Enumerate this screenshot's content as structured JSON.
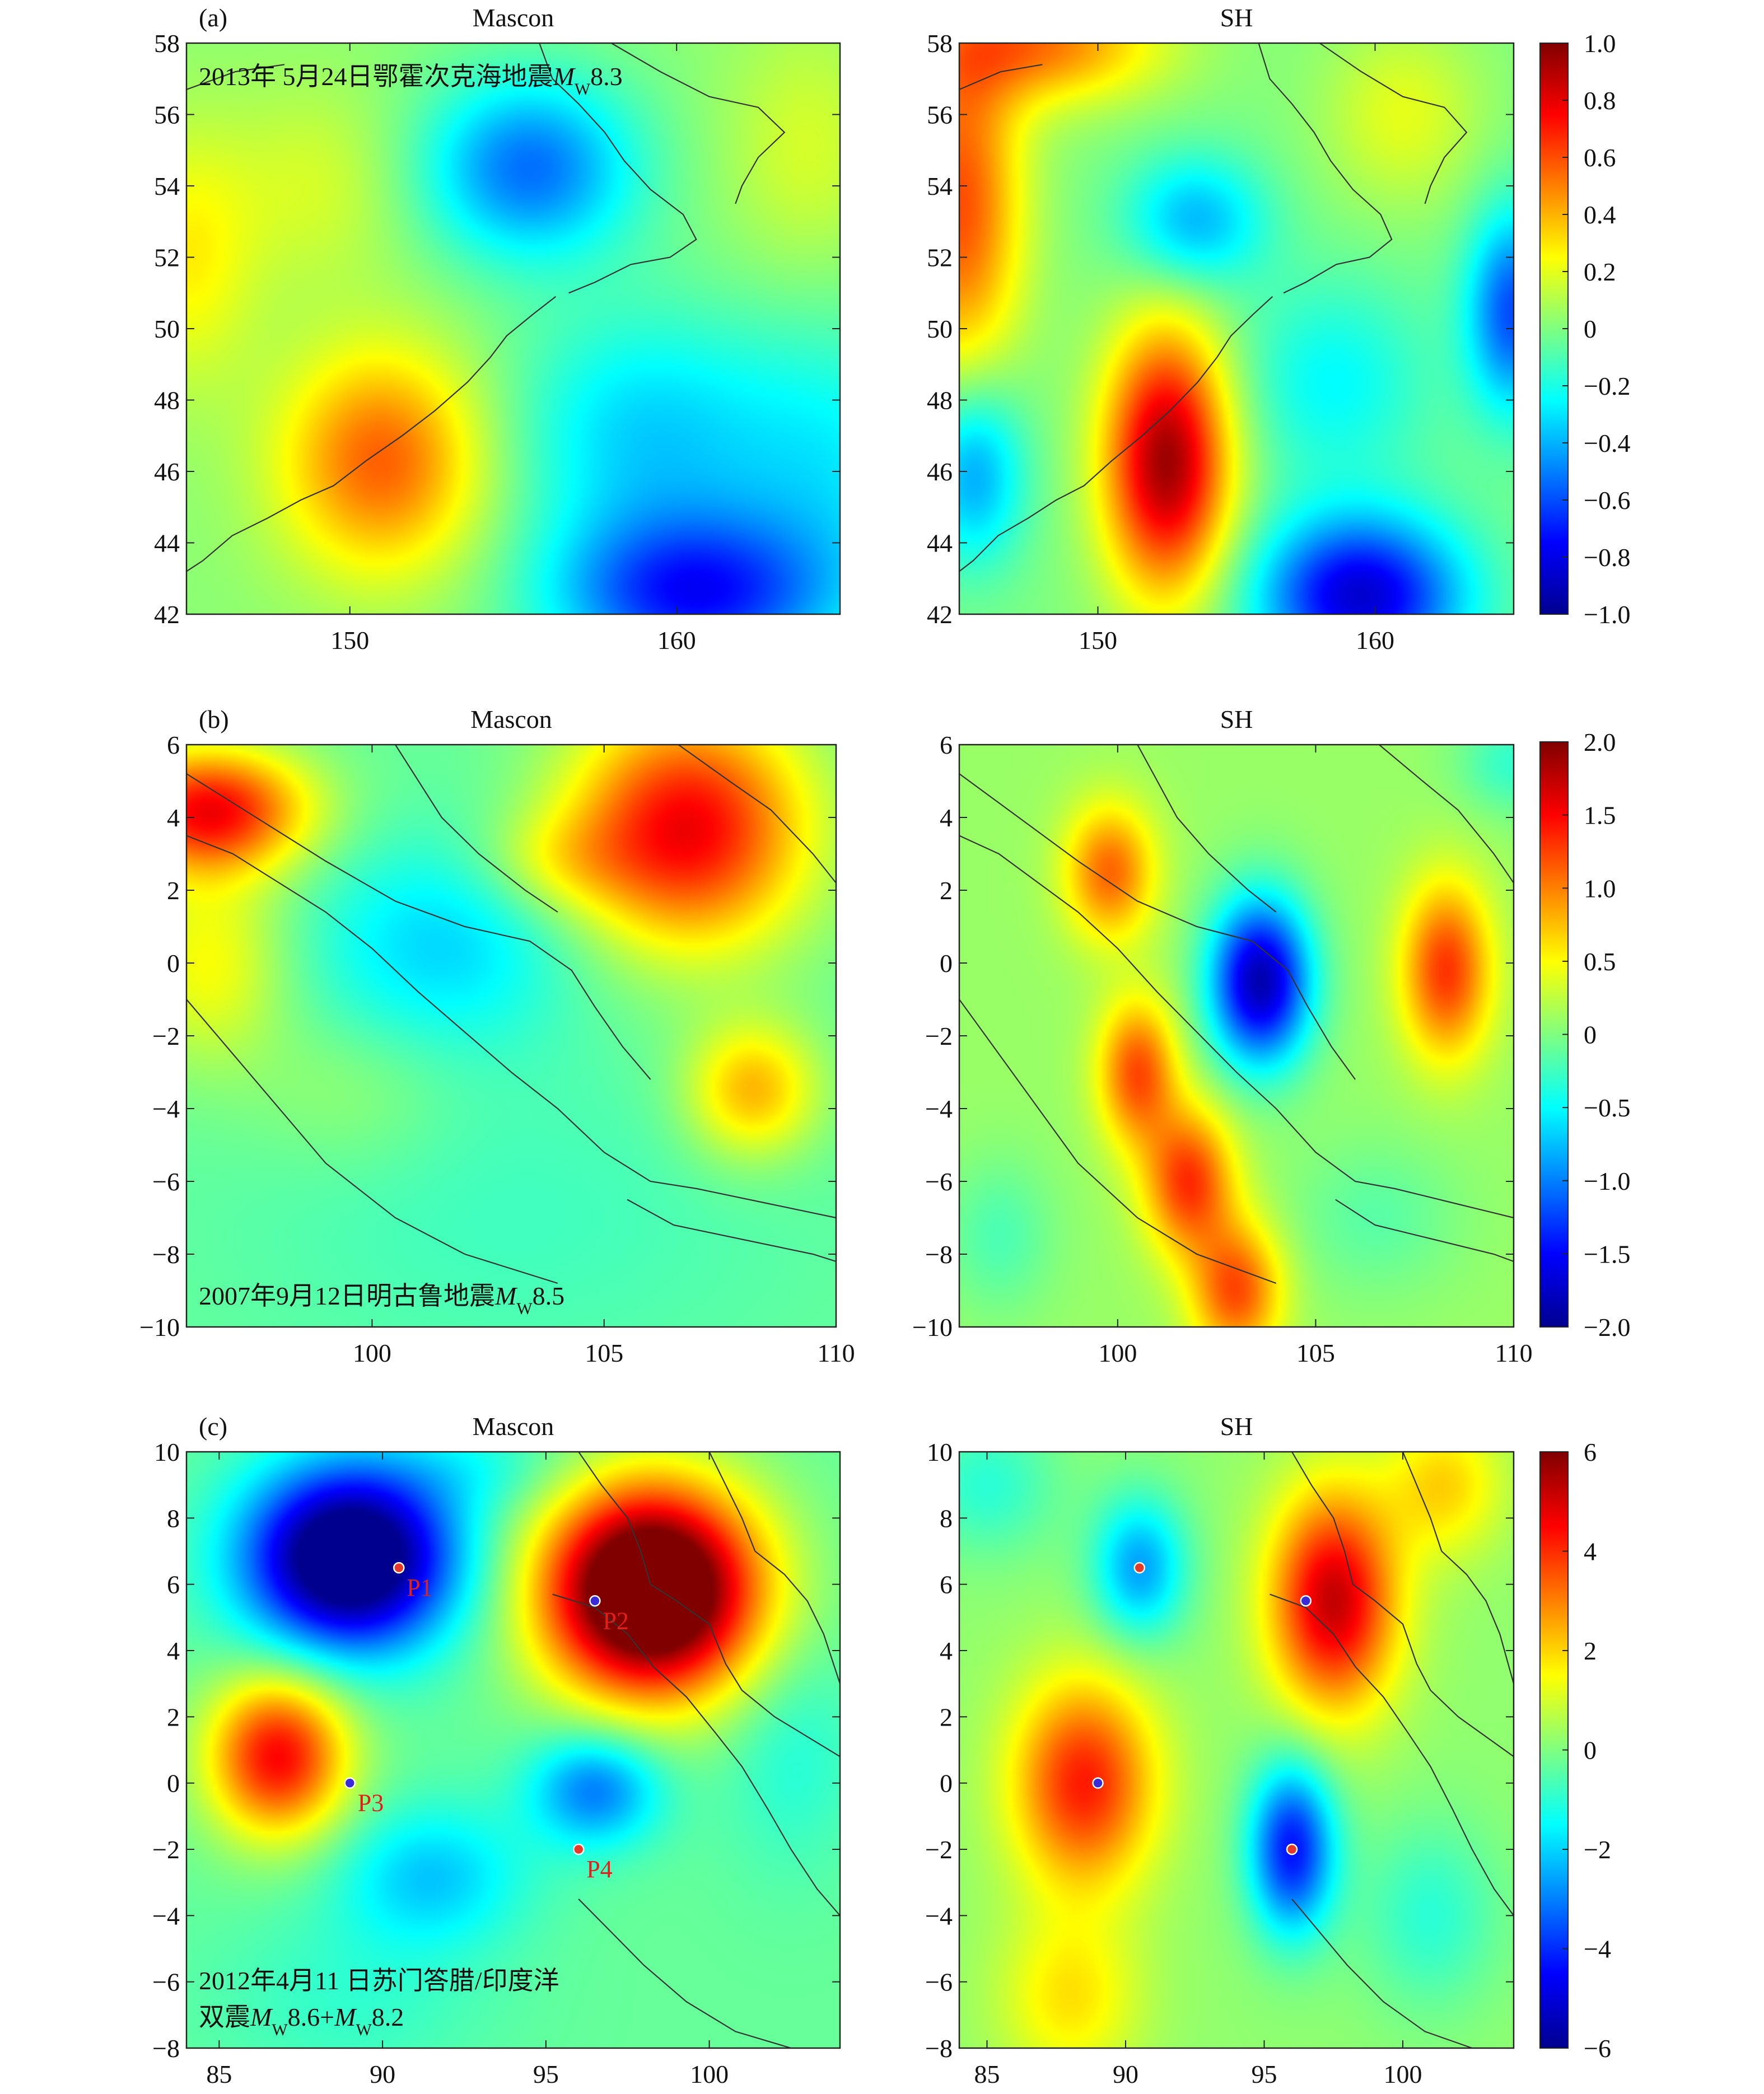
{
  "colors": {
    "coast": "#333333",
    "frame": "#222222",
    "marker_red": "#e53a2a",
    "marker_blue": "#3a2bd8",
    "label_red": "#e0201a"
  },
  "colormap": [
    "#00008f",
    "#0000ff",
    "#0080ff",
    "#00ffff",
    "#80ff80",
    "#ffff00",
    "#ff8000",
    "#ff0000",
    "#800000"
  ],
  "chart_data": [
    {
      "type": "heatmap",
      "tag": "(a)",
      "title": "Mascon",
      "event": {
        "lines": [
          [
            {
              "t": "2013年 5月24日鄂霍次克海地震"
            },
            {
              "t": "M",
              "i": true
            },
            {
              "t": "W",
              "sub": true
            },
            {
              "t": "8.3"
            }
          ]
        ]
      },
      "xlim": [
        145,
        165
      ],
      "ylim": [
        42,
        58
      ],
      "xticks": [
        "150",
        "160"
      ],
      "xtick_values": [
        150,
        160
      ],
      "yticks": [
        "42",
        "44",
        "46",
        "48",
        "50",
        "52",
        "54",
        "56",
        "58"
      ],
      "clim": [
        -1,
        1
      ],
      "blobs": [
        {
          "x": 155.5,
          "y": 54.5,
          "a": -0.55,
          "sx": 2.3,
          "sy": 1.8
        },
        {
          "x": 151,
          "y": 46.3,
          "a": 0.55,
          "sx": 2.2,
          "sy": 2.2
        },
        {
          "x": 160.5,
          "y": 42.5,
          "a": -0.7,
          "sx": 3.0,
          "sy": 1.6
        },
        {
          "x": 165,
          "y": 46,
          "a": -0.25,
          "sx": 2.5,
          "sy": 3.0
        },
        {
          "x": 145,
          "y": 52,
          "a": 0.25,
          "sx": 1.5,
          "sy": 2.5
        },
        {
          "x": 159,
          "y": 47,
          "a": -0.35,
          "sx": 3,
          "sy": 2.5
        },
        {
          "x": 149,
          "y": 54,
          "a": 0.15,
          "sx": 2,
          "sy": 2
        },
        {
          "x": 164,
          "y": 55,
          "a": 0.15,
          "sx": 1.8,
          "sy": 2.5
        }
      ],
      "base": 0.02,
      "points": []
    },
    {
      "type": "heatmap",
      "title": "SH",
      "xlim": [
        145,
        165
      ],
      "ylim": [
        42,
        58
      ],
      "xticks": [
        "150",
        "160"
      ],
      "xtick_values": [
        150,
        160
      ],
      "yticks": [
        "42",
        "44",
        "46",
        "48",
        "50",
        "52",
        "54",
        "56",
        "58"
      ],
      "clim": [
        -1,
        1
      ],
      "cbar_ticks": [
        "1.0",
        "0.8",
        "0.6",
        "0.4",
        "0.2",
        "0",
        "−0.2",
        "−0.4",
        "−0.6",
        "−0.8",
        "−1.0"
      ],
      "blobs": [
        {
          "x": 152.5,
          "y": 46.3,
          "a": 0.95,
          "sx": 1.6,
          "sy": 2.6
        },
        {
          "x": 145,
          "y": 53.5,
          "a": 0.6,
          "sx": 1.6,
          "sy": 3.5
        },
        {
          "x": 148,
          "y": 58,
          "a": 0.5,
          "sx": 3.0,
          "sy": 1.2
        },
        {
          "x": 159.5,
          "y": 42.5,
          "a": -0.85,
          "sx": 2.6,
          "sy": 1.6
        },
        {
          "x": 165,
          "y": 50.5,
          "a": -0.6,
          "sx": 1.2,
          "sy": 2.0
        },
        {
          "x": 153.5,
          "y": 53,
          "a": -0.4,
          "sx": 1.8,
          "sy": 1.3
        },
        {
          "x": 145.5,
          "y": 46,
          "a": -0.45,
          "sx": 1.3,
          "sy": 1.8
        },
        {
          "x": 158.5,
          "y": 48.5,
          "a": -0.25,
          "sx": 2.5,
          "sy": 2.0
        },
        {
          "x": 161,
          "y": 56,
          "a": 0.2,
          "sx": 2.0,
          "sy": 1.8
        }
      ],
      "base": 0.0,
      "points": []
    },
    {
      "type": "heatmap",
      "tag": "(b)",
      "title": "Mascon",
      "event": {
        "lines": [
          [
            {
              "t": "2007年9月12日明古鲁地震"
            },
            {
              "t": "M",
              "i": true
            },
            {
              "t": "W",
              "sub": true
            },
            {
              "t": "8.5"
            }
          ]
        ]
      },
      "xlim": [
        96,
        110
      ],
      "ylim": [
        -10,
        6
      ],
      "xticks": [
        "100",
        "105",
        "110"
      ],
      "xtick_values": [
        100,
        105,
        110
      ],
      "yticks": [
        "−10",
        "−8",
        "−6",
        "−4",
        "−2",
        "0",
        "2",
        "4",
        "6"
      ],
      "clim": [
        -2,
        2
      ],
      "blobs": [
        {
          "x": 106.8,
          "y": 3.7,
          "a": 1.65,
          "sx": 1.8,
          "sy": 2.3
        },
        {
          "x": 96.5,
          "y": 4.2,
          "a": 1.6,
          "sx": 1.5,
          "sy": 1.2
        },
        {
          "x": 108.2,
          "y": -3.5,
          "a": 0.9,
          "sx": 1.0,
          "sy": 1.3
        },
        {
          "x": 96.5,
          "y": 0,
          "a": 0.6,
          "sx": 1.2,
          "sy": 2.0
        },
        {
          "x": 101.5,
          "y": 0.5,
          "a": -0.55,
          "sx": 2.0,
          "sy": 2.0
        },
        {
          "x": 103,
          "y": -7,
          "a": -0.15,
          "sx": 4,
          "sy": 3
        },
        {
          "x": 104,
          "y": 2.8,
          "a": 0.4,
          "sx": 1.2,
          "sy": 1.0
        },
        {
          "x": 99.5,
          "y": -3.5,
          "a": 0.2,
          "sx": 1.5,
          "sy": 1.5
        }
      ],
      "base": -0.1,
      "points": []
    },
    {
      "type": "heatmap",
      "title": "SH",
      "xlim": [
        96,
        110
      ],
      "ylim": [
        -10,
        6
      ],
      "xticks": [
        "100",
        "105",
        "110"
      ],
      "xtick_values": [
        100,
        105,
        110
      ],
      "yticks": [
        "−10",
        "−8",
        "−6",
        "−4",
        "−2",
        "0",
        "2",
        "4",
        "6"
      ],
      "clim": [
        -2,
        2
      ],
      "cbar_ticks": [
        "2.0",
        "1.5",
        "1.0",
        "0.5",
        "0",
        "−0.5",
        "−1.0",
        "−1.5",
        "−2.0"
      ],
      "blobs": [
        {
          "x": 103.6,
          "y": -0.5,
          "a": -1.95,
          "sx": 0.9,
          "sy": 1.6
        },
        {
          "x": 108.3,
          "y": -0.2,
          "a": 1.2,
          "sx": 0.8,
          "sy": 1.7
        },
        {
          "x": 99.8,
          "y": 2.5,
          "a": 1.0,
          "sx": 0.8,
          "sy": 1.3
        },
        {
          "x": 100.5,
          "y": -3.0,
          "a": 1.1,
          "sx": 0.7,
          "sy": 1.4
        },
        {
          "x": 101.8,
          "y": -6.0,
          "a": 1.2,
          "sx": 0.8,
          "sy": 1.4
        },
        {
          "x": 103.0,
          "y": -9.0,
          "a": 1.1,
          "sx": 0.8,
          "sy": 1.3
        },
        {
          "x": 97.0,
          "y": -7.5,
          "a": -0.3,
          "sx": 1.0,
          "sy": 1.5
        },
        {
          "x": 106.5,
          "y": -7.0,
          "a": -0.25,
          "sx": 1.5,
          "sy": 1.5
        },
        {
          "x": 110,
          "y": 5.5,
          "a": -0.4,
          "sx": 1.0,
          "sy": 1.0
        }
      ],
      "base": 0.1,
      "points": []
    },
    {
      "type": "heatmap",
      "tag": "(c)",
      "title": "Mascon",
      "event": {
        "lines": [
          [
            {
              "t": "2012年4月11 日苏门答腊/印度洋"
            }
          ],
          [
            {
              "t": "双震"
            },
            {
              "t": "M",
              "i": true
            },
            {
              "t": "W",
              "sub": true
            },
            {
              "t": "8.6+"
            },
            {
              "t": "M",
              "i": true
            },
            {
              "t": "W",
              "sub": true
            },
            {
              "t": "8.2"
            }
          ]
        ]
      },
      "xlim": [
        84,
        104
      ],
      "ylim": [
        -8,
        10
      ],
      "xticks": [
        "85",
        "90",
        "95",
        "100"
      ],
      "xtick_values": [
        85,
        90,
        95,
        100
      ],
      "yticks": [
        "−8",
        "−6",
        "−4",
        "−2",
        "0",
        "2",
        "4",
        "6",
        "8",
        "10"
      ],
      "clim": [
        -6,
        6
      ],
      "blobs": [
        {
          "x": 89,
          "y": 6.8,
          "a": -7.5,
          "sx": 2.2,
          "sy": 1.9
        },
        {
          "x": 98.2,
          "y": 5.8,
          "a": 9.0,
          "sx": 2.3,
          "sy": 2.2
        },
        {
          "x": 86.8,
          "y": 0.8,
          "a": 4.8,
          "sx": 1.5,
          "sy": 1.7
        },
        {
          "x": 96.5,
          "y": -0.2,
          "a": -2.8,
          "sx": 1.4,
          "sy": 1.2
        },
        {
          "x": 91.5,
          "y": -2.8,
          "a": -1.8,
          "sx": 2.0,
          "sy": 1.5
        },
        {
          "x": 89,
          "y": -6.5,
          "a": -0.6,
          "sx": 3,
          "sy": 2.0
        },
        {
          "x": 102.5,
          "y": 1,
          "a": -0.8,
          "sx": 1.5,
          "sy": 2.5
        },
        {
          "x": 93,
          "y": 9.5,
          "a": -0.8,
          "sx": 2,
          "sy": 1.0
        }
      ],
      "base": -0.3,
      "points": [
        {
          "x": 90.5,
          "y": 6.5,
          "label": "P1",
          "color": "#e53a2a"
        },
        {
          "x": 96.5,
          "y": 5.5,
          "label": "P2",
          "color": "#3a2bd8"
        },
        {
          "x": 89,
          "y": 0,
          "label": "P3",
          "color": "#3a2bd8"
        },
        {
          "x": 96,
          "y": -2,
          "label": "P4",
          "color": "#e53a2a"
        }
      ]
    },
    {
      "type": "heatmap",
      "title": "SH",
      "xlim": [
        84,
        104
      ],
      "ylim": [
        -8,
        10
      ],
      "xticks": [
        "85",
        "90",
        "95",
        "100"
      ],
      "xtick_values": [
        85,
        90,
        95,
        100
      ],
      "yticks": [
        "−8",
        "−6",
        "−4",
        "−2",
        "0",
        "2",
        "4",
        "6",
        "8",
        "10"
      ],
      "clim": [
        -6,
        6
      ],
      "cbar_ticks": [
        "6",
        "4",
        "2",
        "0",
        "−2",
        "−4",
        "−6"
      ],
      "blobs": [
        {
          "x": 97.5,
          "y": 5.5,
          "a": 5.0,
          "sx": 1.6,
          "sy": 2.3
        },
        {
          "x": 88.5,
          "y": 0,
          "a": 4.0,
          "sx": 1.8,
          "sy": 2.2
        },
        {
          "x": 96,
          "y": -2,
          "a": -4.5,
          "sx": 1.1,
          "sy": 1.8
        },
        {
          "x": 90.5,
          "y": 6.5,
          "a": -2.8,
          "sx": 1.2,
          "sy": 1.5
        },
        {
          "x": 85,
          "y": 9,
          "a": -1.2,
          "sx": 1.8,
          "sy": 1.5
        },
        {
          "x": 101.5,
          "y": 9,
          "a": 1.8,
          "sx": 1.5,
          "sy": 1.5
        },
        {
          "x": 88,
          "y": -6.5,
          "a": 1.6,
          "sx": 1.8,
          "sy": 1.8
        },
        {
          "x": 101,
          "y": -4,
          "a": -1.2,
          "sx": 1.8,
          "sy": 2.0
        }
      ],
      "base": 0.2,
      "points": [
        {
          "x": 90.5,
          "y": 6.5,
          "color": "#e53a2a"
        },
        {
          "x": 96.5,
          "y": 5.5,
          "color": "#3a2bd8"
        },
        {
          "x": 89,
          "y": 0,
          "color": "#3a2bd8"
        },
        {
          "x": 96,
          "y": -2,
          "color": "#e53a2a"
        }
      ]
    }
  ]
}
